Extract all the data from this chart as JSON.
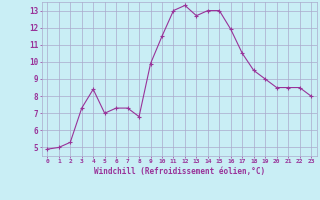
{
  "x": [
    0,
    1,
    2,
    3,
    4,
    5,
    6,
    7,
    8,
    9,
    10,
    11,
    12,
    13,
    14,
    15,
    16,
    17,
    18,
    19,
    20,
    21,
    22,
    23
  ],
  "y": [
    4.9,
    5.0,
    5.3,
    7.3,
    8.4,
    7.0,
    7.3,
    7.3,
    6.8,
    9.9,
    11.5,
    13.0,
    13.3,
    12.7,
    13.0,
    13.0,
    11.9,
    10.5,
    9.5,
    9.0,
    8.5,
    8.5,
    8.5,
    8.0
  ],
  "line_color": "#993399",
  "marker": "+",
  "bg_color": "#c9eef5",
  "grid_color": "#aaaacc",
  "xlabel": "Windchill (Refroidissement éolien,°C)",
  "yticks": [
    5,
    6,
    7,
    8,
    9,
    10,
    11,
    12,
    13
  ],
  "xlim": [
    -0.5,
    23.5
  ],
  "ylim": [
    4.5,
    13.5
  ],
  "tick_color": "#993399",
  "label_color": "#993399",
  "font": "monospace"
}
